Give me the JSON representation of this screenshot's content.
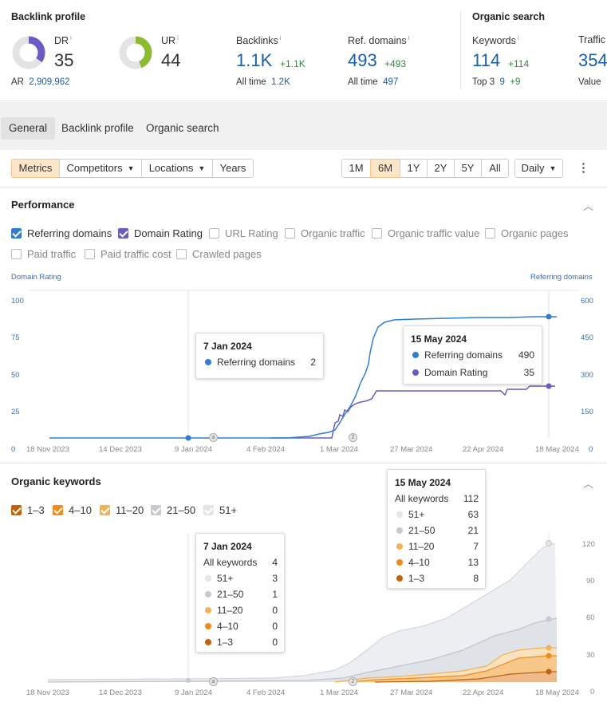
{
  "backlink_profile": {
    "title": "Backlink profile",
    "dr": {
      "label": "DR",
      "info": "i",
      "value": "35",
      "ring_fraction": 0.35,
      "ring_color": "#6b5cc4"
    },
    "ar": {
      "label": "AR",
      "value": "2,909,962"
    },
    "ur": {
      "label": "UR",
      "info": "i",
      "value": "44",
      "ring_fraction": 0.44,
      "ring_color": "#8dbb2f"
    },
    "backlinks": {
      "label": "Backlinks",
      "info": "i",
      "value": "1.1K",
      "delta": "+1.1K",
      "sub_label": "All time",
      "sub_value": "1.2K"
    },
    "ref_domains": {
      "label": "Ref. domains",
      "info": "i",
      "value": "493",
      "delta": "+493",
      "sub_label": "All time",
      "sub_value": "497"
    }
  },
  "organic_search": {
    "title": "Organic search",
    "keywords": {
      "label": "Keywords",
      "info": "i",
      "value": "114",
      "delta": "+114",
      "sub_label": "Top 3",
      "sub_value": "9",
      "sub_delta": "+9"
    },
    "traffic": {
      "label": "Traffic",
      "value": "354",
      "sub_label": "Value"
    }
  },
  "tabs": [
    "General",
    "Backlink profile",
    "Organic search"
  ],
  "toolbar": {
    "metrics": "Metrics",
    "competitors": "Competitors",
    "locations": "Locations",
    "years": "Years",
    "ranges": [
      "1M",
      "6M",
      "1Y",
      "2Y",
      "5Y",
      "All"
    ],
    "active_range": "6M",
    "interval": "Daily",
    "more": "⋮"
  },
  "performance": {
    "title": "Performance",
    "checkboxes_row1": [
      {
        "label": "Referring domains",
        "checked": true,
        "color": "#2f7fd0"
      },
      {
        "label": "Domain Rating",
        "checked": true,
        "color": "#6b5cc4"
      },
      {
        "label": "URL Rating",
        "checked": false
      },
      {
        "label": "Organic traffic",
        "checked": false
      },
      {
        "label": "Organic traffic value",
        "checked": false
      },
      {
        "label": "Organic pages",
        "checked": false
      }
    ],
    "checkboxes_row2": [
      {
        "label": "Paid traffic",
        "checked": false
      },
      {
        "label": "Paid traffic cost",
        "checked": false
      },
      {
        "label": "Crawled pages",
        "checked": false
      }
    ],
    "left_axis_title": "Domain Rating",
    "right_axis_title": "Referring domains",
    "left_ticks": [
      "100",
      "75",
      "50",
      "25",
      "0"
    ],
    "right_ticks": [
      "600",
      "450",
      "300",
      "150",
      "0"
    ],
    "x_ticks": [
      "18 Nov 2023",
      "14 Dec 2023",
      "9 Jan 2024",
      "4 Feb 2024",
      "1 Mar 2024",
      "27 Mar 2024",
      "22 Apr 2024",
      "18 May 2024"
    ],
    "markers": [
      "a",
      "2"
    ],
    "tooltip_jan": {
      "date": "7 Jan 2024",
      "rows": [
        {
          "label": "Referring domains",
          "value": "2",
          "color": "#2f7fd0"
        }
      ]
    },
    "tooltip_may": {
      "date": "15 May 2024",
      "rows": [
        {
          "label": "Referring domains",
          "value": "490",
          "color": "#2f7fd0"
        },
        {
          "label": "Domain Rating",
          "value": "35",
          "color": "#6b5cc4"
        }
      ]
    }
  },
  "organic_keywords": {
    "title": "Organic keywords",
    "legend": [
      {
        "label": "1–3",
        "color": "#c0620e"
      },
      {
        "label": "4–10",
        "color": "#ef8a1c"
      },
      {
        "label": "11–20",
        "color": "#f4b055"
      },
      {
        "label": "21–50",
        "color": "#c5cad2"
      },
      {
        "label": "51+",
        "color": "#e2e5e9"
      }
    ],
    "right_ticks": [
      "120",
      "90",
      "60",
      "30",
      "0"
    ],
    "x_ticks": [
      "18 Nov 2023",
      "14 Dec 2023",
      "9 Jan 2024",
      "4 Feb 2024",
      "1 Mar 2024",
      "27 Mar 2024",
      "22 Apr 2024",
      "18 May 2024"
    ],
    "markers": [
      "a",
      "2"
    ],
    "tooltip_jan": {
      "date": "7 Jan 2024",
      "header_label": "All keywords",
      "header_value": "4",
      "rows": [
        {
          "label": "51+",
          "value": "3",
          "color": "#e2e5e9"
        },
        {
          "label": "21–50",
          "value": "1",
          "color": "#c5cad2"
        },
        {
          "label": "11–20",
          "value": "0",
          "color": "#f4b055"
        },
        {
          "label": "4–10",
          "value": "0",
          "color": "#ef8a1c"
        },
        {
          "label": "1–3",
          "value": "0",
          "color": "#c0620e"
        }
      ]
    },
    "tooltip_may": {
      "date": "15 May 2024",
      "header_label": "All keywords",
      "header_value": "112",
      "rows": [
        {
          "label": "51+",
          "value": "63",
          "color": "#e2e5e9"
        },
        {
          "label": "21–50",
          "value": "21",
          "color": "#c5cad2"
        },
        {
          "label": "11–20",
          "value": "7",
          "color": "#f4b055"
        },
        {
          "label": "4–10",
          "value": "13",
          "color": "#ef8a1c"
        },
        {
          "label": "1–3",
          "value": "8",
          "color": "#c0620e"
        }
      ]
    }
  }
}
